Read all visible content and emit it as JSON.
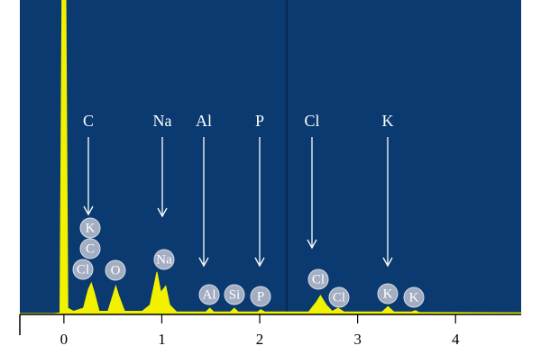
{
  "chart_data": {
    "type": "area",
    "color": "#f2f200",
    "background": "#0b3a70",
    "x": [
      -0.45,
      -0.1,
      -0.04,
      -0.02,
      0.02,
      0.04,
      0.1,
      0.2,
      0.25,
      0.28,
      0.31,
      0.36,
      0.45,
      0.5,
      0.53,
      0.56,
      0.62,
      0.8,
      0.88,
      0.95,
      0.99,
      1.04,
      1.08,
      1.15,
      1.45,
      1.49,
      1.53,
      1.7,
      1.74,
      1.78,
      1.98,
      2.01,
      2.05,
      2.5,
      2.58,
      2.62,
      2.68,
      2.74,
      2.8,
      2.86,
      3.25,
      3.31,
      3.37,
      3.55,
      3.59,
      3.63,
      4.67
    ],
    "values": [
      0.3,
      0.3,
      0.5,
      100,
      100,
      2,
      1,
      2,
      8,
      10,
      7,
      1,
      1,
      6,
      9,
      6,
      1,
      1,
      3,
      13.5,
      7,
      9,
      3,
      0.8,
      0.8,
      2,
      0.8,
      0.8,
      2,
      0.8,
      0.8,
      1.5,
      0.8,
      0.8,
      4,
      6,
      3,
      1,
      2,
      0.8,
      0.8,
      2.5,
      0.8,
      0.8,
      1.2,
      0.6,
      0.5
    ],
    "xlim": [
      -0.45,
      4.67
    ],
    "ylim": [
      0,
      100
    ],
    "xticks": [
      0,
      1,
      2,
      3,
      4
    ],
    "arrow_labels": [
      "C",
      "Na",
      "Al",
      "P",
      "Cl",
      "K"
    ],
    "peak_labels": [
      "K",
      "C",
      "Cl",
      "O",
      "Na",
      "Al",
      "Si",
      "P",
      "Cl",
      "Cl",
      "K",
      "K"
    ]
  }
}
